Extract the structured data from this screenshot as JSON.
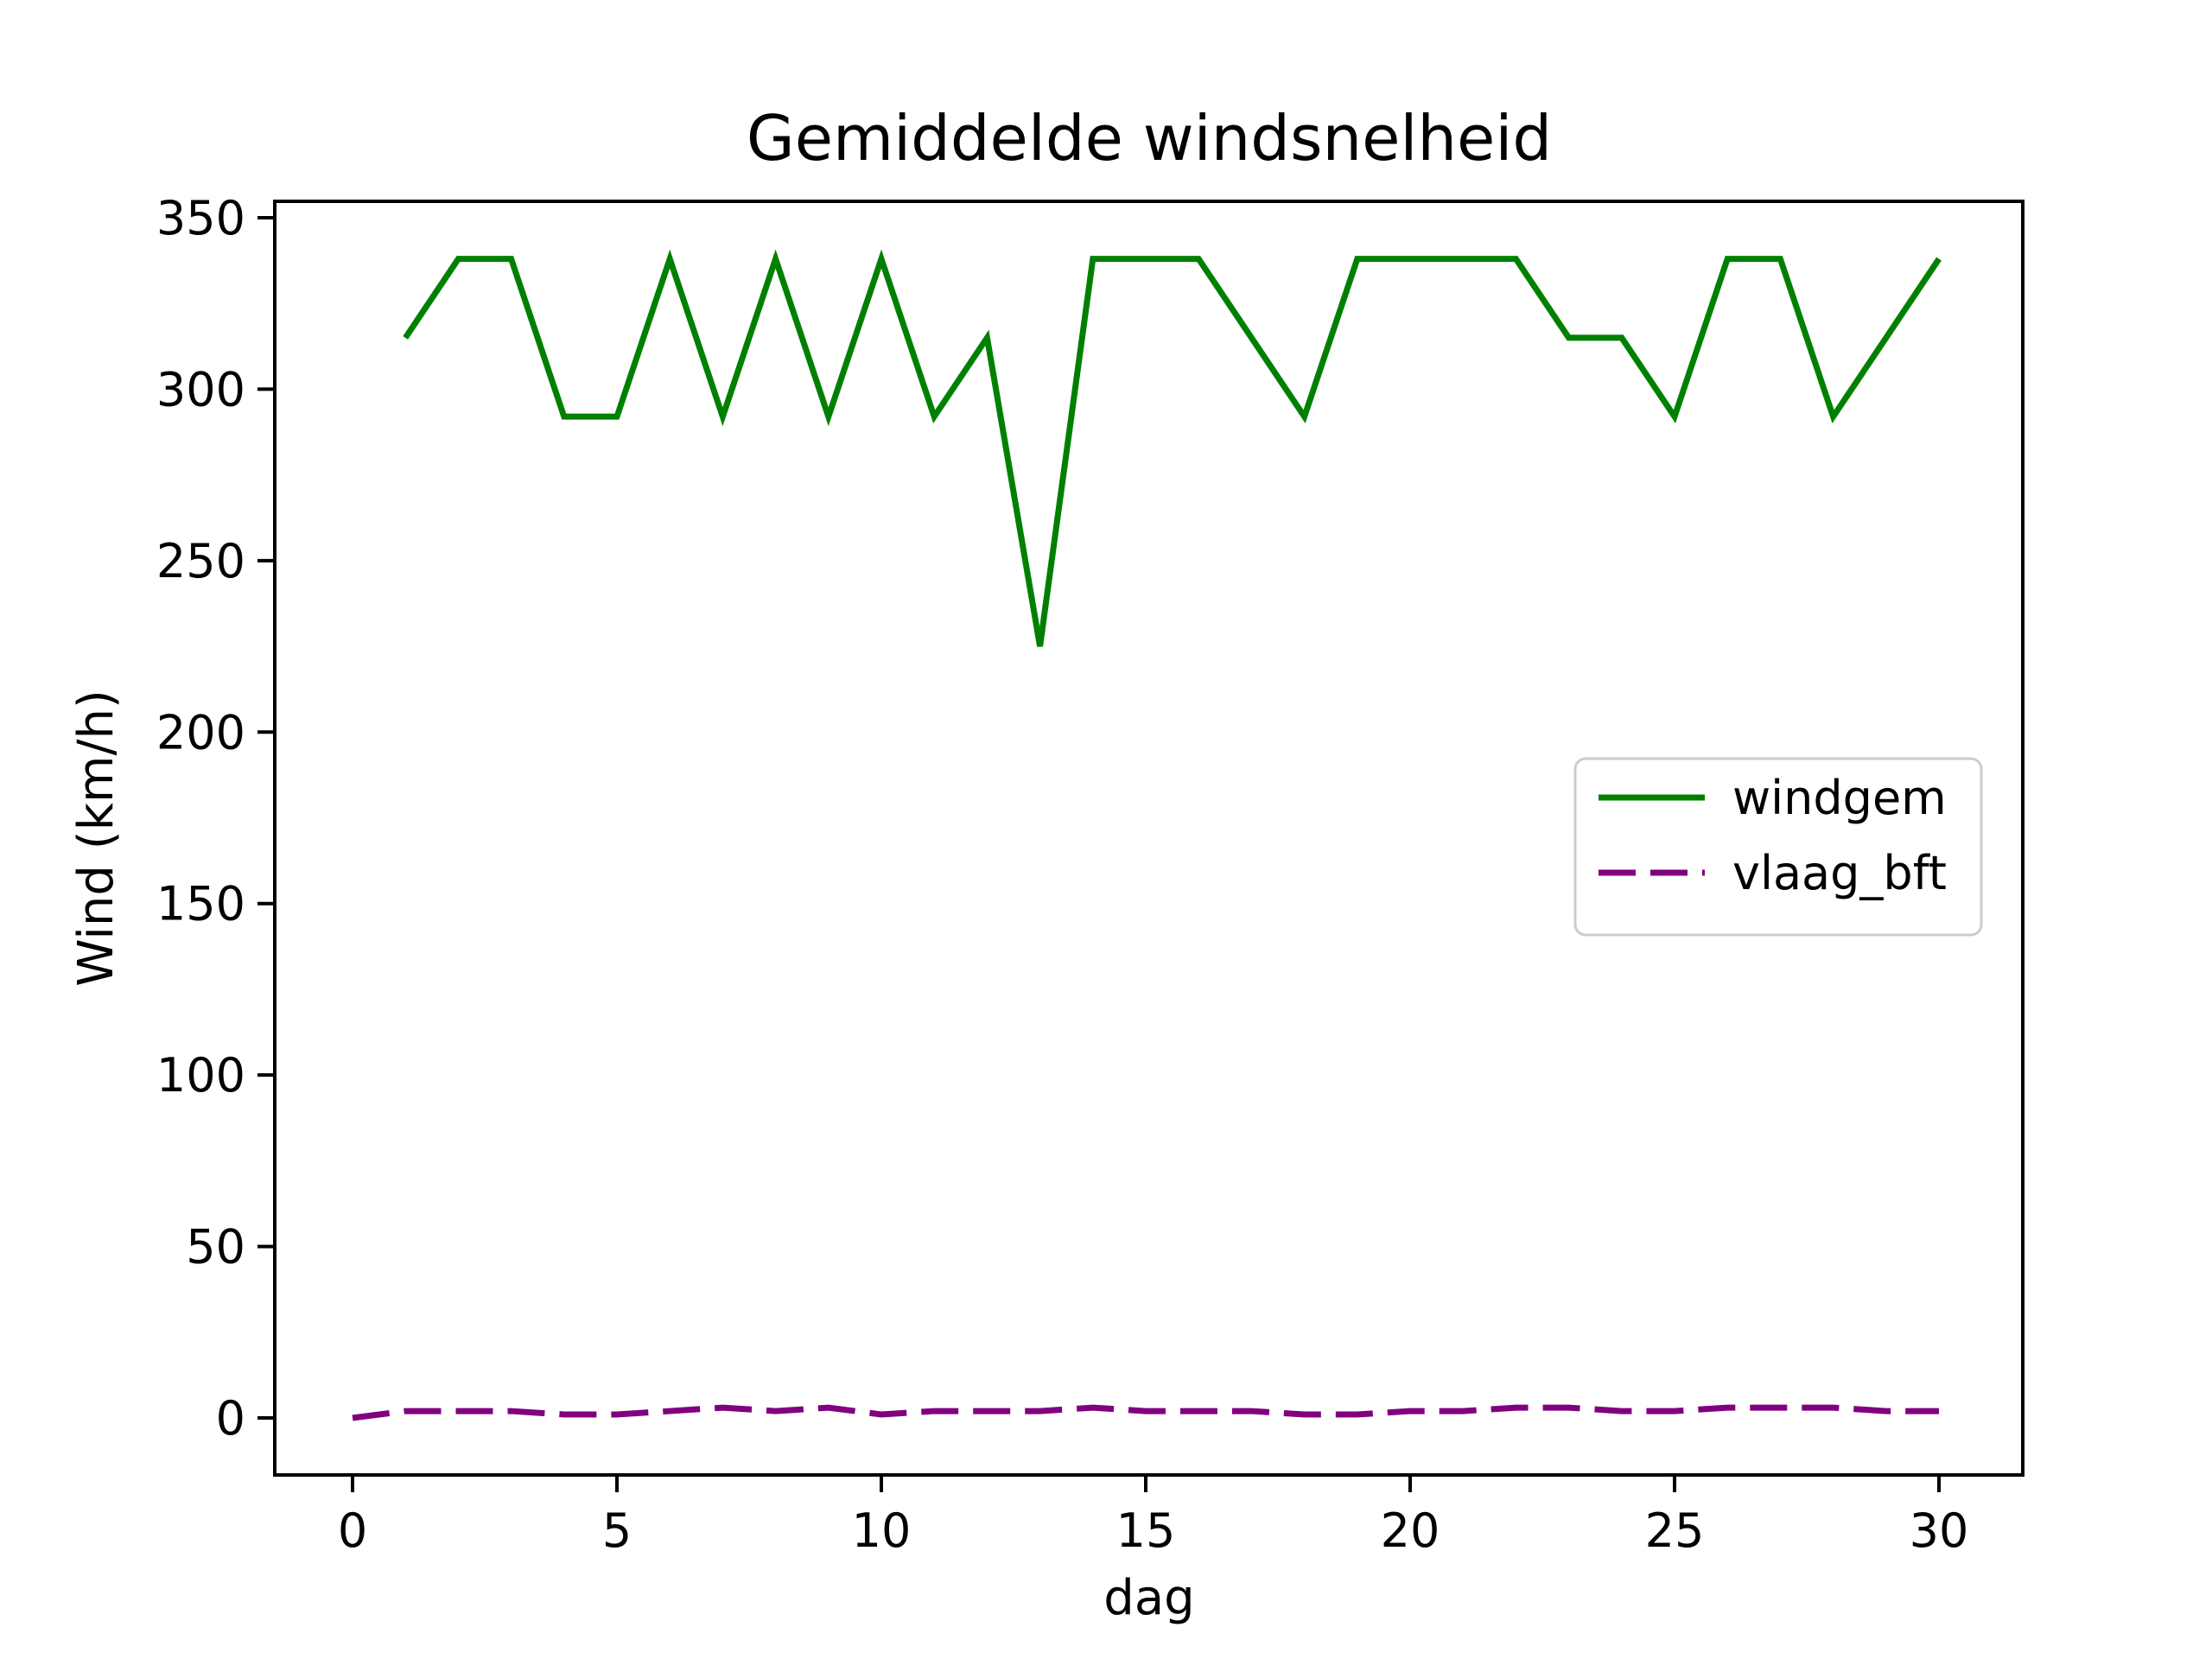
{
  "title": "Gemiddelde windsnelheid",
  "x_axis": {
    "label": "dag",
    "ticks": [
      "0",
      "5",
      "10",
      "15",
      "20",
      "25",
      "30"
    ]
  },
  "y_axis": {
    "label": "Wind (km/h)",
    "ticks": [
      "0",
      "50",
      "100",
      "150",
      "200",
      "250",
      "300",
      "350"
    ]
  },
  "legend": {
    "entries": [
      {
        "label": "windgem",
        "color": "#008000",
        "dashed": false
      },
      {
        "label": "vlaag_bft",
        "color": "#800080",
        "dashed": true
      }
    ]
  },
  "colors": {
    "windgem": "#008000",
    "vlaag_bft": "#800080",
    "spine": "#000000",
    "legend_edge": "#cccccc"
  },
  "chart_data": {
    "type": "line",
    "title": "Gemiddelde windsnelheid",
    "xlabel": "dag",
    "ylabel": "Wind (km/h)",
    "xlim": [
      -1.5,
      31.5
    ],
    "ylim": [
      -16.9,
      354.9
    ],
    "x_ticks": [
      0,
      5,
      10,
      15,
      20,
      25,
      30
    ],
    "y_ticks": [
      0,
      50,
      100,
      150,
      200,
      250,
      300,
      350
    ],
    "grid": false,
    "legend_position": "center-right",
    "series": [
      {
        "name": "windgem",
        "color": "#008000",
        "style": "solid",
        "x": [
          1,
          2,
          3,
          4,
          5,
          6,
          7,
          8,
          9,
          10,
          11,
          12,
          13,
          14,
          15,
          16,
          17,
          18,
          19,
          20,
          21,
          22,
          23,
          24,
          25,
          26,
          27,
          28,
          29,
          30
        ],
        "values": [
          315,
          338,
          338,
          292,
          292,
          338,
          292,
          338,
          292,
          338,
          292,
          315,
          225,
          338,
          338,
          338,
          315,
          292,
          338,
          338,
          338,
          338,
          315,
          315,
          292,
          338,
          338,
          292,
          315,
          338
        ]
      },
      {
        "name": "vlaag_bft",
        "color": "#800080",
        "style": "dashed",
        "x": [
          0,
          1,
          2,
          3,
          4,
          5,
          6,
          7,
          8,
          9,
          10,
          11,
          12,
          13,
          14,
          15,
          16,
          17,
          18,
          19,
          20,
          21,
          22,
          23,
          24,
          25,
          26,
          27,
          28,
          29,
          30
        ],
        "values": [
          0,
          2,
          2,
          2,
          1,
          1,
          2,
          3,
          2,
          3,
          1,
          2,
          2,
          2,
          3,
          2,
          2,
          2,
          1,
          1,
          2,
          2,
          3,
          3,
          2,
          2,
          3,
          3,
          3,
          2,
          2
        ]
      }
    ]
  }
}
